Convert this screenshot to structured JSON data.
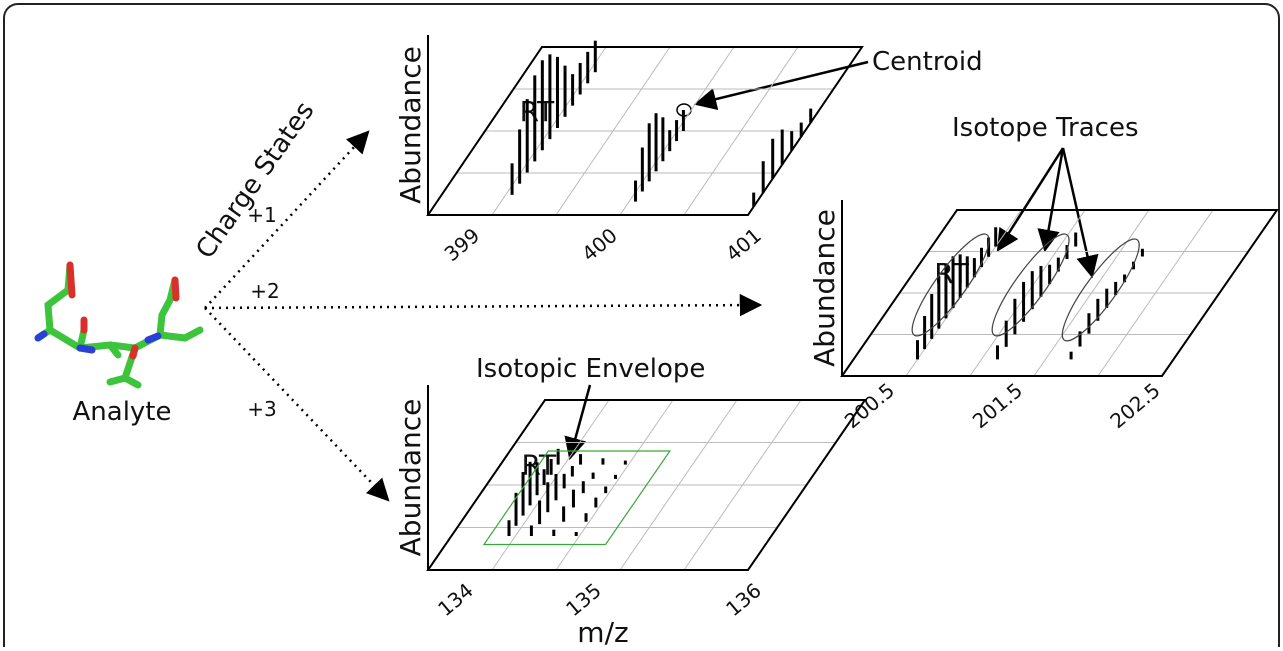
{
  "analyte": "Analyte",
  "charge_states": {
    "title": "Charge States",
    "labels": [
      "+1",
      "+2",
      "+3"
    ]
  },
  "annotations": {
    "centroid": "Centroid",
    "isotope_traces": "Isotope Traces",
    "isotopic_envelope": "Isotopic Envelope"
  },
  "panels": [
    {
      "y_label": "Abundance",
      "rt_label": "RT",
      "x_ticks": [
        "399",
        "400",
        "401"
      ]
    },
    {
      "y_label": "Abundance",
      "rt_label": "RT",
      "x_ticks": [
        "200.5",
        "201.5",
        "202.5"
      ]
    },
    {
      "y_label": "Abundance",
      "rt_label": "RT",
      "x_ticks": [
        "134",
        "135",
        "136"
      ],
      "x_label": "m/z"
    }
  ]
}
